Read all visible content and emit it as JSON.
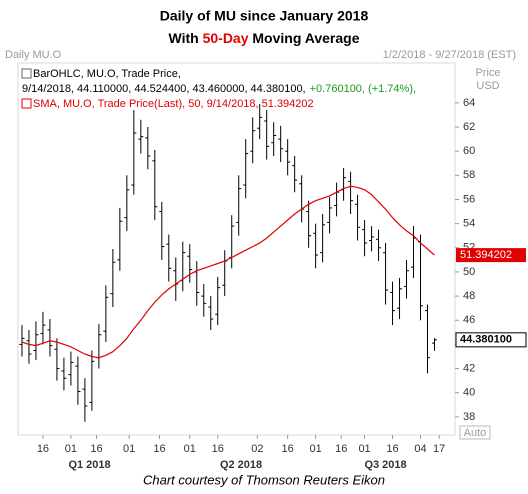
{
  "chart_data": {
    "type": "ohlc",
    "title": "Daily of MU since January 2018",
    "subtitle": {
      "before": "With ",
      "highlight": "50-Day",
      "after": " Moving Average"
    },
    "header": {
      "left": "Daily MU.O",
      "right": "1/2/2018 - 9/27/2018 (EST)"
    },
    "y_axis_label": [
      "Price",
      "USD"
    ],
    "auto_button": "Auto",
    "footer": "Chart courtesy of Thomson Reuters Eikon",
    "legend_lines": {
      "ohlc_name": "BarOHLC, MU.O, Trade Price,",
      "ohlc_values": "9/14/2018, 44.110000, 44.524400, 43.460000, 44.380100,",
      "ohlc_change": "+0.760100, (+1.74%),"
    },
    "ylim": [
      36.5,
      67.3
    ],
    "yticks": [
      38,
      40,
      42,
      44,
      46,
      48,
      50,
      52,
      54,
      56,
      58,
      60,
      62,
      64
    ],
    "xlim": [
      -1.7,
      185.8
    ],
    "xticks": [
      {
        "value": 9,
        "label": "16"
      },
      {
        "value": 21,
        "label": "01"
      },
      {
        "value": 32,
        "label": "16"
      },
      {
        "value": 46,
        "label": "01"
      },
      {
        "value": 59,
        "label": "16"
      },
      {
        "value": 72,
        "label": "01"
      },
      {
        "value": 84,
        "label": "16"
      },
      {
        "value": 101,
        "label": "02"
      },
      {
        "value": 114,
        "label": "16"
      },
      {
        "value": 126,
        "label": "01"
      },
      {
        "value": 137,
        "label": "16"
      },
      {
        "value": 147,
        "label": "01"
      },
      {
        "value": 159,
        "label": "16"
      },
      {
        "value": 171,
        "label": "04"
      },
      {
        "value": 179,
        "label": "17"
      }
    ],
    "period_ticks": [
      {
        "value": 29,
        "label": "Q1 2018"
      },
      {
        "value": 94,
        "label": "Q2 2018"
      },
      {
        "value": 156,
        "label": "Q3 2018"
      }
    ],
    "x": [
      0,
      3,
      6,
      9,
      12,
      15,
      18,
      21,
      24,
      27,
      30,
      33,
      36,
      39,
      42,
      45,
      48,
      51,
      54,
      57,
      60,
      63,
      66,
      69,
      72,
      75,
      78,
      81,
      84,
      87,
      90,
      93,
      96,
      99,
      102,
      105,
      108,
      111,
      114,
      117,
      120,
      123,
      126,
      129,
      132,
      135,
      138,
      141,
      144,
      147,
      150,
      153,
      156,
      159,
      162,
      165,
      168,
      171,
      174,
      177
    ],
    "series": [
      {
        "name": "BarOHLC, MU.O, Trade Price",
        "color": "#000000",
        "open": [
          44.0,
          44.3,
          43.5,
          44.9,
          45.2,
          43.6,
          41.8,
          41.5,
          42.2,
          40.3,
          39.2,
          42.9,
          45.1,
          48.2,
          51.0,
          54.5,
          57.2,
          61.0,
          61.1,
          59.2,
          55.0,
          52.3,
          50.1,
          49.3,
          51.3,
          50.0,
          48.0,
          47.1,
          46.5,
          48.9,
          51.2,
          54.1,
          57.2,
          60.0,
          61.9,
          62.5,
          60.7,
          61.0,
          60.0,
          58.8,
          57.3,
          55.0,
          53.2,
          51.6,
          54.1,
          55.5,
          56.8,
          57.5,
          55.6,
          53.5,
          52.6,
          52.7,
          51.6,
          48.3,
          47.0,
          48.8,
          50.4,
          52.5,
          46.8,
          44.11
        ],
        "high": [
          45.6,
          45.2,
          45.9,
          46.7,
          46.1,
          44.5,
          42.9,
          43.4,
          43.0,
          41.2,
          43.5,
          45.7,
          48.9,
          51.9,
          55.3,
          58.0,
          63.4,
          62.6,
          62.0,
          60.1,
          55.8,
          53.1,
          51.2,
          52.5,
          52.3,
          50.9,
          49.0,
          48.0,
          49.6,
          51.8,
          54.7,
          58.0,
          61.0,
          62.8,
          63.9,
          63.4,
          62.4,
          62.1,
          61.0,
          59.6,
          58.0,
          55.9,
          54.0,
          54.8,
          56.2,
          57.4,
          58.6,
          58.3,
          56.4,
          54.3,
          53.8,
          53.5,
          52.4,
          49.2,
          49.5,
          51.0,
          53.8,
          53.1,
          47.3,
          44.5244
        ],
        "low": [
          43.0,
          42.4,
          42.7,
          44.0,
          43.0,
          41.0,
          40.2,
          40.6,
          39.0,
          37.6,
          38.5,
          42.0,
          44.2,
          47.1,
          50.1,
          53.4,
          56.4,
          59.8,
          58.5,
          54.3,
          51.0,
          49.2,
          47.6,
          48.4,
          49.1,
          47.2,
          46.3,
          45.2,
          45.6,
          48.0,
          50.3,
          53.0,
          56.1,
          59.0,
          61.0,
          59.3,
          59.6,
          59.1,
          58.0,
          56.6,
          54.1,
          52.0,
          50.3,
          50.8,
          53.2,
          54.6,
          55.9,
          54.8,
          52.6,
          51.3,
          51.7,
          50.9,
          47.3,
          45.6,
          46.1,
          47.8,
          49.5,
          46.0,
          41.6,
          43.46
        ],
        "close": [
          44.5,
          43.2,
          44.8,
          45.6,
          43.9,
          42.0,
          41.2,
          42.5,
          40.1,
          38.9,
          42.6,
          44.8,
          47.9,
          50.8,
          54.2,
          56.8,
          61.5,
          61.2,
          59.6,
          55.4,
          52.1,
          50.3,
          49.0,
          51.6,
          50.2,
          48.3,
          47.4,
          46.1,
          48.7,
          50.9,
          53.8,
          56.9,
          59.8,
          61.7,
          62.8,
          60.4,
          61.3,
          60.2,
          59.1,
          57.6,
          55.2,
          53.0,
          51.4,
          53.9,
          55.3,
          56.6,
          57.8,
          55.9,
          53.7,
          52.4,
          52.9,
          52.0,
          48.5,
          46.8,
          48.6,
          50.1,
          52.8,
          47.2,
          42.9,
          44.3801
        ],
        "last_label": "44.380100"
      },
      {
        "name": "SMA, MU.O, Trade Price(Last), 50, 9/14/2018, 51.394202",
        "color": "#e00000",
        "values": [
          44.2,
          44.0,
          43.9,
          44.1,
          44.3,
          44.2,
          44.0,
          43.8,
          43.5,
          43.2,
          43.0,
          42.9,
          43.1,
          43.4,
          43.9,
          44.5,
          45.3,
          46.0,
          46.8,
          47.5,
          48.1,
          48.6,
          49.0,
          49.4,
          49.8,
          50.1,
          50.3,
          50.5,
          50.7,
          50.9,
          51.2,
          51.5,
          51.8,
          52.1,
          52.4,
          52.8,
          53.3,
          53.8,
          54.3,
          54.8,
          55.2,
          55.6,
          55.9,
          56.1,
          56.3,
          56.6,
          56.9,
          57.1,
          57.0,
          56.8,
          56.4,
          55.8,
          55.2,
          54.5,
          53.9,
          53.4,
          53.0,
          52.4,
          51.9,
          51.394202
        ],
        "last_label": "51.394202"
      }
    ]
  }
}
